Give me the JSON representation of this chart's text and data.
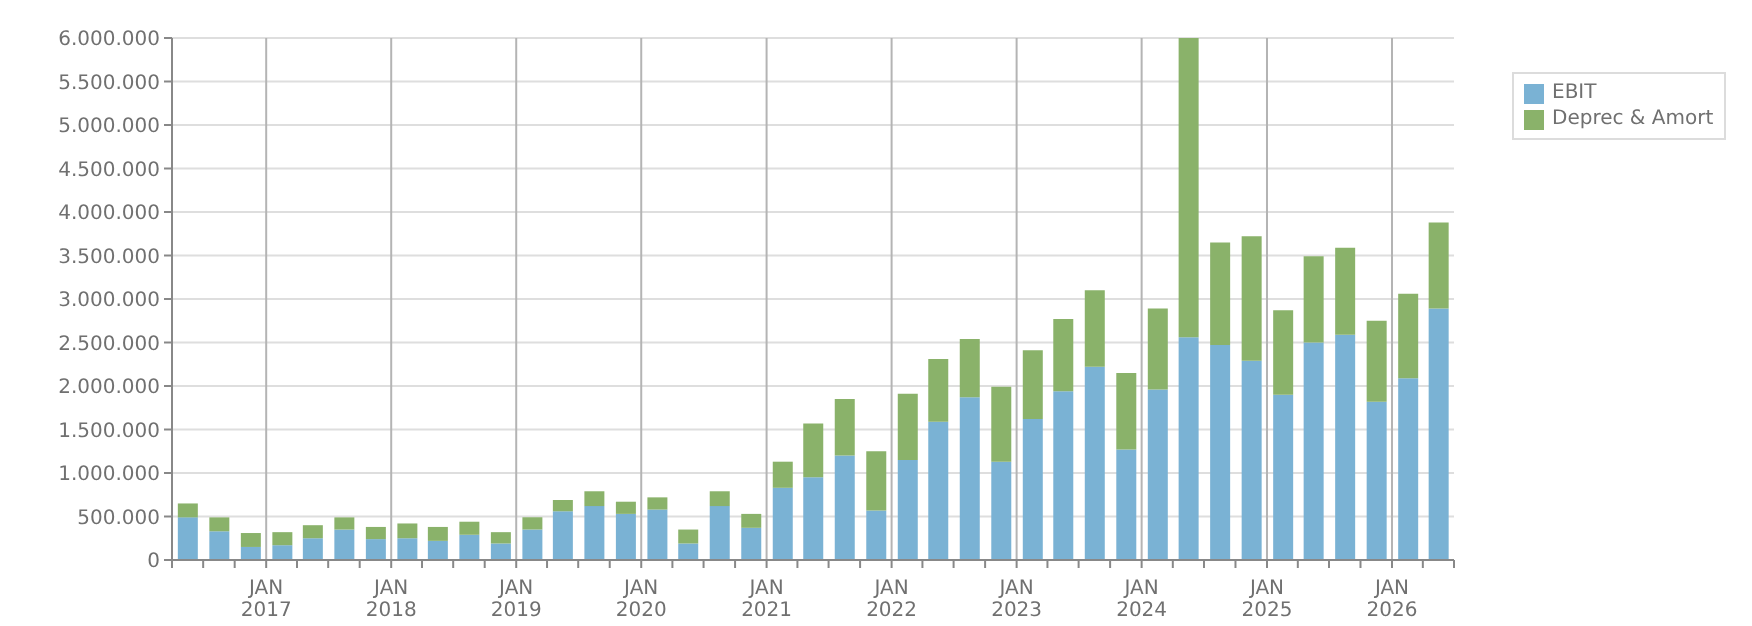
{
  "chart_data": {
    "type": "bar",
    "stacked": true,
    "x": [
      "2016-05-15",
      "2016-08-15",
      "2016-11-15",
      "2017-02-15",
      "2017-05-15",
      "2017-08-15",
      "2017-11-15",
      "2018-02-15",
      "2018-05-15",
      "2018-08-15",
      "2018-11-15",
      "2019-02-15",
      "2019-05-15",
      "2019-08-15",
      "2019-11-15",
      "2020-02-15",
      "2020-05-15",
      "2020-08-15",
      "2020-11-15",
      "2021-02-15",
      "2021-05-15",
      "2021-08-15",
      "2021-11-15",
      "2022-02-15",
      "2022-05-15",
      "2022-08-15",
      "2022-11-15",
      "2023-02-15",
      "2023-05-15",
      "2023-08-15",
      "2023-11-15",
      "2024-02-15",
      "2024-05-15",
      "2024-08-15",
      "2024-11-15",
      "2025-02-15",
      "2025-05-15",
      "2025-08-15",
      "2025-11-15",
      "2026-02-15",
      "2026-05-15"
    ],
    "series": [
      {
        "name": "EBIT",
        "color": "#7ab2d4",
        "values": [
          490000,
          330000,
          150000,
          170000,
          250000,
          350000,
          240000,
          250000,
          220000,
          290000,
          190000,
          350000,
          560000,
          620000,
          530000,
          580000,
          190000,
          620000,
          370000,
          830000,
          950000,
          1200000,
          570000,
          1150000,
          1590000,
          1870000,
          1130000,
          1620000,
          1940000,
          2220000,
          1270000,
          1960000,
          2560000,
          2470000,
          2290000,
          1900000,
          2500000,
          2590000,
          1820000,
          2090000,
          2890000
        ]
      },
      {
        "name": "Deprec & Amort",
        "color": "#8ab26a",
        "values": [
          160000,
          160000,
          160000,
          150000,
          150000,
          140000,
          140000,
          170000,
          160000,
          150000,
          130000,
          140000,
          130000,
          170000,
          140000,
          140000,
          160000,
          170000,
          160000,
          300000,
          620000,
          650000,
          680000,
          760000,
          720000,
          670000,
          860000,
          790000,
          830000,
          880000,
          880000,
          930000,
          3440000,
          1180000,
          1430000,
          970000,
          990000,
          1000000,
          930000,
          970000,
          990000
        ]
      }
    ],
    "xlim": [
      "2016-04-01",
      "2026-07-01"
    ],
    "xticks": [
      {
        "value": "2016-04-01",
        "label": null
      },
      {
        "value": "2016-07-01",
        "label": null
      },
      {
        "value": "2016-10-01",
        "label": null
      },
      {
        "value": "2017-01-01",
        "label": "JAN\n2017"
      },
      {
        "value": "2017-04-01",
        "label": null
      },
      {
        "value": "2017-07-01",
        "label": null
      },
      {
        "value": "2017-10-01",
        "label": null
      },
      {
        "value": "2018-01-01",
        "label": "JAN\n2018"
      },
      {
        "value": "2018-04-01",
        "label": null
      },
      {
        "value": "2018-07-01",
        "label": null
      },
      {
        "value": "2018-10-01",
        "label": null
      },
      {
        "value": "2019-01-01",
        "label": "JAN\n2019"
      },
      {
        "value": "2019-04-01",
        "label": null
      },
      {
        "value": "2019-07-01",
        "label": null
      },
      {
        "value": "2019-10-01",
        "label": null
      },
      {
        "value": "2020-01-01",
        "label": "JAN\n2020"
      },
      {
        "value": "2020-04-01",
        "label": null
      },
      {
        "value": "2020-07-01",
        "label": null
      },
      {
        "value": "2020-10-01",
        "label": null
      },
      {
        "value": "2021-01-01",
        "label": "JAN\n2021"
      },
      {
        "value": "2021-04-01",
        "label": null
      },
      {
        "value": "2021-07-01",
        "label": null
      },
      {
        "value": "2021-10-01",
        "label": null
      },
      {
        "value": "2022-01-01",
        "label": "JAN\n2022"
      },
      {
        "value": "2022-04-01",
        "label": null
      },
      {
        "value": "2022-07-01",
        "label": null
      },
      {
        "value": "2022-10-01",
        "label": null
      },
      {
        "value": "2023-01-01",
        "label": "JAN\n2023"
      },
      {
        "value": "2023-04-01",
        "label": null
      },
      {
        "value": "2023-07-01",
        "label": null
      },
      {
        "value": "2023-10-01",
        "label": null
      },
      {
        "value": "2024-01-01",
        "label": "JAN\n2024"
      },
      {
        "value": "2024-04-01",
        "label": null
      },
      {
        "value": "2024-07-01",
        "label": null
      },
      {
        "value": "2024-10-01",
        "label": null
      },
      {
        "value": "2025-01-01",
        "label": "JAN\n2025"
      },
      {
        "value": "2025-04-01",
        "label": null
      },
      {
        "value": "2025-07-01",
        "label": null
      },
      {
        "value": "2025-10-01",
        "label": null
      },
      {
        "value": "2026-01-01",
        "label": "JAN\n2026"
      },
      {
        "value": "2026-04-01",
        "label": null
      },
      {
        "value": "2026-07-01",
        "label": null
      }
    ],
    "ylim": [
      0,
      6000000
    ],
    "yticks": [
      0,
      {
        "value": 500000,
        "label": "500.000"
      },
      {
        "value": 1000000,
        "label": "1.000.000"
      },
      {
        "value": 1500000,
        "label": "1.500.000"
      },
      {
        "value": 2000000,
        "label": "2.000.000"
      },
      {
        "value": 2500000,
        "label": "2.500.000"
      },
      {
        "value": 3000000,
        "label": "3.000.000"
      },
      {
        "value": 3500000,
        "label": "3.500.000"
      },
      {
        "value": 4000000,
        "label": "4.000.000"
      },
      {
        "value": 4500000,
        "label": "4.500.000"
      },
      {
        "value": 5000000,
        "label": "5.000.000"
      },
      {
        "value": 5500000,
        "label": "5.500.000"
      },
      {
        "value": 6000000,
        "label": "6.000.000"
      }
    ],
    "grid": true,
    "legend": "top right"
  }
}
